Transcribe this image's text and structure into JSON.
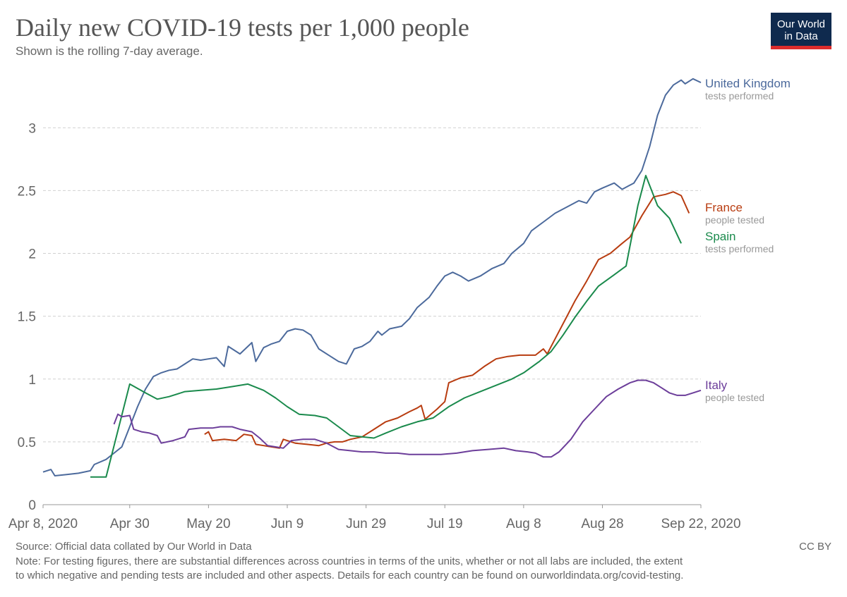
{
  "header": {
    "title": "Daily new COVID-19 tests per 1,000 people",
    "subtitle": "Shown is the rolling 7-day average."
  },
  "logo": {
    "line1": "Our World",
    "line2": "in Data"
  },
  "footer": {
    "source": "Source: Official data collated by Our World in Data",
    "license": "CC BY",
    "note_line1": "Note: For testing figures, there are substantial differences across countries in terms of the units, whether or not all labs are included, the extent",
    "note_line2": "to which negative and pending tests are included and other aspects. Details for each country can be found on ourworldindata.org/covid-testing."
  },
  "chart_data": {
    "type": "line",
    "title": "Daily new COVID-19 tests per 1,000 people",
    "subtitle": "Shown is the rolling 7-day average.",
    "x_range": [
      "2020-04-08",
      "2020-09-22"
    ],
    "ylim": [
      0,
      3.4
    ],
    "y_ticks": [
      0,
      0.5,
      1,
      1.5,
      2,
      2.5,
      3
    ],
    "y_tick_labels": [
      "0",
      "0.5",
      "1",
      "1.5",
      "2",
      "2.5",
      "3"
    ],
    "x_ticks": [
      "2020-04-08",
      "2020-04-30",
      "2020-05-20",
      "2020-06-09",
      "2020-06-29",
      "2020-07-19",
      "2020-08-08",
      "2020-08-28",
      "2020-09-22"
    ],
    "x_tick_labels": [
      "Apr 8, 2020",
      "Apr 30",
      "May 20",
      "Jun 9",
      "Jun 29",
      "Jul 19",
      "Aug 8",
      "Aug 28",
      "Sep 22, 2020"
    ],
    "grid": "horizontal-dashed",
    "legend": "right-end-labels",
    "series": [
      {
        "name": "United Kingdom",
        "sublabel": "tests performed",
        "color": "#4c6a9c",
        "points": [
          [
            "2020-04-08",
            0.26
          ],
          [
            "2020-04-10",
            0.28
          ],
          [
            "2020-04-11",
            0.23
          ],
          [
            "2020-04-14",
            0.24
          ],
          [
            "2020-04-17",
            0.25
          ],
          [
            "2020-04-20",
            0.27
          ],
          [
            "2020-04-21",
            0.32
          ],
          [
            "2020-04-24",
            0.36
          ],
          [
            "2020-04-26",
            0.41
          ],
          [
            "2020-04-28",
            0.46
          ],
          [
            "2020-04-30",
            0.62
          ],
          [
            "2020-05-02",
            0.78
          ],
          [
            "2020-05-04",
            0.92
          ],
          [
            "2020-05-06",
            1.02
          ],
          [
            "2020-05-08",
            1.05
          ],
          [
            "2020-05-10",
            1.07
          ],
          [
            "2020-05-12",
            1.08
          ],
          [
            "2020-05-14",
            1.12
          ],
          [
            "2020-05-16",
            1.16
          ],
          [
            "2020-05-18",
            1.15
          ],
          [
            "2020-05-20",
            1.16
          ],
          [
            "2020-05-22",
            1.17
          ],
          [
            "2020-05-24",
            1.1
          ],
          [
            "2020-05-25",
            1.26
          ],
          [
            "2020-05-28",
            1.2
          ],
          [
            "2020-05-31",
            1.29
          ],
          [
            "2020-06-01",
            1.14
          ],
          [
            "2020-06-03",
            1.25
          ],
          [
            "2020-06-05",
            1.28
          ],
          [
            "2020-06-07",
            1.3
          ],
          [
            "2020-06-09",
            1.38
          ],
          [
            "2020-06-11",
            1.4
          ],
          [
            "2020-06-13",
            1.39
          ],
          [
            "2020-06-15",
            1.35
          ],
          [
            "2020-06-17",
            1.24
          ],
          [
            "2020-06-20",
            1.18
          ],
          [
            "2020-06-22",
            1.14
          ],
          [
            "2020-06-24",
            1.12
          ],
          [
            "2020-06-26",
            1.24
          ],
          [
            "2020-06-28",
            1.26
          ],
          [
            "2020-06-30",
            1.3
          ],
          [
            "2020-07-02",
            1.38
          ],
          [
            "2020-07-03",
            1.35
          ],
          [
            "2020-07-05",
            1.4
          ],
          [
            "2020-07-08",
            1.42
          ],
          [
            "2020-07-10",
            1.48
          ],
          [
            "2020-07-12",
            1.57
          ],
          [
            "2020-07-15",
            1.65
          ],
          [
            "2020-07-17",
            1.74
          ],
          [
            "2020-07-19",
            1.82
          ],
          [
            "2020-07-21",
            1.85
          ],
          [
            "2020-07-23",
            1.82
          ],
          [
            "2020-07-25",
            1.78
          ],
          [
            "2020-07-28",
            1.82
          ],
          [
            "2020-07-31",
            1.88
          ],
          [
            "2020-08-03",
            1.92
          ],
          [
            "2020-08-05",
            2.0
          ],
          [
            "2020-08-08",
            2.08
          ],
          [
            "2020-08-10",
            2.18
          ],
          [
            "2020-08-13",
            2.25
          ],
          [
            "2020-08-16",
            2.32
          ],
          [
            "2020-08-19",
            2.37
          ],
          [
            "2020-08-22",
            2.42
          ],
          [
            "2020-08-24",
            2.4
          ],
          [
            "2020-08-26",
            2.49
          ],
          [
            "2020-08-28",
            2.52
          ],
          [
            "2020-08-31",
            2.56
          ],
          [
            "2020-09-02",
            2.51
          ],
          [
            "2020-09-05",
            2.56
          ],
          [
            "2020-09-07",
            2.66
          ],
          [
            "2020-09-09",
            2.85
          ],
          [
            "2020-09-11",
            3.1
          ],
          [
            "2020-09-13",
            3.26
          ],
          [
            "2020-09-15",
            3.34
          ],
          [
            "2020-09-17",
            3.38
          ],
          [
            "2020-09-18",
            3.35
          ],
          [
            "2020-09-20",
            3.39
          ],
          [
            "2020-09-22",
            3.36
          ]
        ]
      },
      {
        "name": "France",
        "sublabel": "people tested",
        "color": "#b83c10",
        "points": [
          [
            "2020-05-19",
            0.56
          ],
          [
            "2020-05-20",
            0.58
          ],
          [
            "2020-05-21",
            0.51
          ],
          [
            "2020-05-24",
            0.52
          ],
          [
            "2020-05-27",
            0.51
          ],
          [
            "2020-05-29",
            0.56
          ],
          [
            "2020-05-31",
            0.55
          ],
          [
            "2020-06-01",
            0.48
          ],
          [
            "2020-06-03",
            0.47
          ],
          [
            "2020-06-05",
            0.46
          ],
          [
            "2020-06-07",
            0.45
          ],
          [
            "2020-06-08",
            0.52
          ],
          [
            "2020-06-11",
            0.49
          ],
          [
            "2020-06-14",
            0.48
          ],
          [
            "2020-06-17",
            0.47
          ],
          [
            "2020-06-19",
            0.49
          ],
          [
            "2020-06-21",
            0.5
          ],
          [
            "2020-06-23",
            0.5
          ],
          [
            "2020-06-25",
            0.52
          ],
          [
            "2020-06-28",
            0.54
          ],
          [
            "2020-07-01",
            0.6
          ],
          [
            "2020-07-04",
            0.66
          ],
          [
            "2020-07-07",
            0.69
          ],
          [
            "2020-07-10",
            0.74
          ],
          [
            "2020-07-12",
            0.77
          ],
          [
            "2020-07-13",
            0.79
          ],
          [
            "2020-07-14",
            0.68
          ],
          [
            "2020-07-17",
            0.76
          ],
          [
            "2020-07-19",
            0.82
          ],
          [
            "2020-07-20",
            0.97
          ],
          [
            "2020-07-23",
            1.01
          ],
          [
            "2020-07-26",
            1.03
          ],
          [
            "2020-07-29",
            1.1
          ],
          [
            "2020-08-01",
            1.16
          ],
          [
            "2020-08-04",
            1.18
          ],
          [
            "2020-08-07",
            1.19
          ],
          [
            "2020-08-11",
            1.19
          ],
          [
            "2020-08-13",
            1.24
          ],
          [
            "2020-08-14",
            1.2
          ],
          [
            "2020-08-16",
            1.32
          ],
          [
            "2020-08-19",
            1.5
          ],
          [
            "2020-08-21",
            1.62
          ],
          [
            "2020-08-24",
            1.78
          ],
          [
            "2020-08-27",
            1.95
          ],
          [
            "2020-08-30",
            2.0
          ],
          [
            "2020-09-02",
            2.08
          ],
          [
            "2020-09-04",
            2.13
          ],
          [
            "2020-09-07",
            2.3
          ],
          [
            "2020-09-10",
            2.45
          ],
          [
            "2020-09-13",
            2.47
          ],
          [
            "2020-09-15",
            2.49
          ],
          [
            "2020-09-17",
            2.46
          ],
          [
            "2020-09-19",
            2.32
          ]
        ]
      },
      {
        "name": "Spain",
        "sublabel": "tests performed",
        "color": "#1a8a4c",
        "points": [
          [
            "2020-04-20",
            0.22
          ],
          [
            "2020-04-24",
            0.22
          ],
          [
            "2020-04-30",
            0.96
          ],
          [
            "2020-05-04",
            0.89
          ],
          [
            "2020-05-07",
            0.84
          ],
          [
            "2020-05-10",
            0.86
          ],
          [
            "2020-05-14",
            0.9
          ],
          [
            "2020-05-18",
            0.91
          ],
          [
            "2020-05-22",
            0.92
          ],
          [
            "2020-05-26",
            0.94
          ],
          [
            "2020-05-30",
            0.96
          ],
          [
            "2020-06-03",
            0.91
          ],
          [
            "2020-06-06",
            0.85
          ],
          [
            "2020-06-09",
            0.78
          ],
          [
            "2020-06-12",
            0.72
          ],
          [
            "2020-06-16",
            0.71
          ],
          [
            "2020-06-19",
            0.69
          ],
          [
            "2020-06-22",
            0.62
          ],
          [
            "2020-06-25",
            0.55
          ],
          [
            "2020-06-28",
            0.54
          ],
          [
            "2020-07-01",
            0.53
          ],
          [
            "2020-07-04",
            0.57
          ],
          [
            "2020-07-08",
            0.62
          ],
          [
            "2020-07-12",
            0.66
          ],
          [
            "2020-07-16",
            0.69
          ],
          [
            "2020-07-20",
            0.78
          ],
          [
            "2020-07-24",
            0.85
          ],
          [
            "2020-07-28",
            0.9
          ],
          [
            "2020-08-01",
            0.95
          ],
          [
            "2020-08-05",
            1.0
          ],
          [
            "2020-08-08",
            1.05
          ],
          [
            "2020-08-12",
            1.14
          ],
          [
            "2020-08-15",
            1.22
          ],
          [
            "2020-08-18",
            1.35
          ],
          [
            "2020-08-21",
            1.49
          ],
          [
            "2020-08-24",
            1.62
          ],
          [
            "2020-08-27",
            1.74
          ],
          [
            "2020-08-31",
            1.83
          ],
          [
            "2020-09-03",
            1.9
          ],
          [
            "2020-09-06",
            2.38
          ],
          [
            "2020-09-08",
            2.62
          ],
          [
            "2020-09-11",
            2.38
          ],
          [
            "2020-09-14",
            2.28
          ],
          [
            "2020-09-17",
            2.08
          ]
        ]
      },
      {
        "name": "Italy",
        "sublabel": "people tested",
        "color": "#6c3e9a",
        "points": [
          [
            "2020-04-26",
            0.64
          ],
          [
            "2020-04-27",
            0.72
          ],
          [
            "2020-04-28",
            0.7
          ],
          [
            "2020-04-30",
            0.71
          ],
          [
            "2020-05-01",
            0.6
          ],
          [
            "2020-05-03",
            0.58
          ],
          [
            "2020-05-05",
            0.57
          ],
          [
            "2020-05-07",
            0.55
          ],
          [
            "2020-05-08",
            0.49
          ],
          [
            "2020-05-11",
            0.51
          ],
          [
            "2020-05-14",
            0.54
          ],
          [
            "2020-05-15",
            0.6
          ],
          [
            "2020-05-18",
            0.61
          ],
          [
            "2020-05-21",
            0.61
          ],
          [
            "2020-05-23",
            0.62
          ],
          [
            "2020-05-26",
            0.62
          ],
          [
            "2020-05-28",
            0.6
          ],
          [
            "2020-05-31",
            0.58
          ],
          [
            "2020-06-02",
            0.53
          ],
          [
            "2020-06-04",
            0.47
          ],
          [
            "2020-06-06",
            0.46
          ],
          [
            "2020-06-08",
            0.45
          ],
          [
            "2020-06-10",
            0.51
          ],
          [
            "2020-06-13",
            0.52
          ],
          [
            "2020-06-16",
            0.52
          ],
          [
            "2020-06-19",
            0.49
          ],
          [
            "2020-06-22",
            0.44
          ],
          [
            "2020-06-25",
            0.43
          ],
          [
            "2020-06-28",
            0.42
          ],
          [
            "2020-07-01",
            0.42
          ],
          [
            "2020-07-04",
            0.41
          ],
          [
            "2020-07-07",
            0.41
          ],
          [
            "2020-07-10",
            0.4
          ],
          [
            "2020-07-14",
            0.4
          ],
          [
            "2020-07-18",
            0.4
          ],
          [
            "2020-07-22",
            0.41
          ],
          [
            "2020-07-26",
            0.43
          ],
          [
            "2020-07-30",
            0.44
          ],
          [
            "2020-08-03",
            0.45
          ],
          [
            "2020-08-06",
            0.43
          ],
          [
            "2020-08-09",
            0.42
          ],
          [
            "2020-08-11",
            0.41
          ],
          [
            "2020-08-13",
            0.38
          ],
          [
            "2020-08-15",
            0.38
          ],
          [
            "2020-08-17",
            0.42
          ],
          [
            "2020-08-20",
            0.52
          ],
          [
            "2020-08-23",
            0.66
          ],
          [
            "2020-08-26",
            0.76
          ],
          [
            "2020-08-29",
            0.86
          ],
          [
            "2020-09-01",
            0.92
          ],
          [
            "2020-09-04",
            0.97
          ],
          [
            "2020-09-06",
            0.99
          ],
          [
            "2020-09-08",
            0.99
          ],
          [
            "2020-09-10",
            0.97
          ],
          [
            "2020-09-12",
            0.93
          ],
          [
            "2020-09-14",
            0.89
          ],
          [
            "2020-09-16",
            0.87
          ],
          [
            "2020-09-18",
            0.87
          ],
          [
            "2020-09-20",
            0.89
          ],
          [
            "2020-09-22",
            0.91
          ]
        ]
      }
    ]
  }
}
